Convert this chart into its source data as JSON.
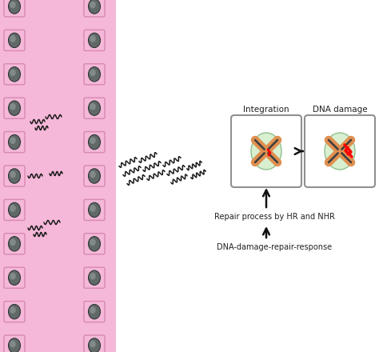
{
  "bg_color": "#ffffff",
  "pink_bg": "#f5b8d8",
  "cell_box_color": "#f5b8d8",
  "cell_box_edge": "#d888b0",
  "nucleus_color": "#606868",
  "nucleus_edge": "#303838",
  "nucleus_highlight": "#909898",
  "box_bg": "#ffffff",
  "box_border": "#909090",
  "green_ell_fill": "#d8f0d0",
  "green_ell_edge": "#90c090",
  "chromosome_color": "#e09050",
  "chromosome_edge": "#404040",
  "damage_color": "#cc0000",
  "wavy_color": "#1a1a1a",
  "arrow_color": "#111111",
  "label_integration": "Integration",
  "label_dna_damage": "DNA damage",
  "label_repair": "Repair process by HR and NHR",
  "label_ddr": "DNA-damage-repair-response",
  "text_color": "#222222",
  "font_size": 7.5,
  "fig_w": 4.74,
  "fig_h": 4.4,
  "dpi": 100
}
